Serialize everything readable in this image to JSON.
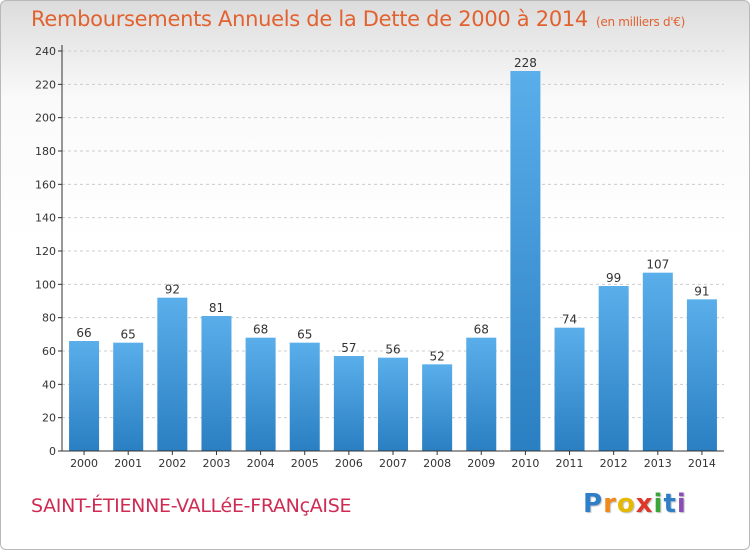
{
  "header": {
    "title": "Remboursements Annuels de la Dette de 2000 à 2014",
    "unit": "(en milliers d'€)"
  },
  "footer": {
    "commune": "SAINT-ÉTIENNE-VALLéE-FRANçAISE",
    "logo_letters": [
      "P",
      "r",
      "o",
      "x",
      "i",
      "t",
      "i"
    ],
    "logo_colors": [
      "#2f7fc8",
      "#f08a1c",
      "#e6b800",
      "#e0372b",
      "#3aa63a",
      "#2f7fc8",
      "#8a4fb5"
    ]
  },
  "colors": {
    "bar_top": "#5aaeea",
    "bar_bottom": "#2a7fc2",
    "grid": "#cccccc",
    "axis": "#333333"
  },
  "chart_data": {
    "type": "bar",
    "title": "Remboursements Annuels de la Dette de 2000 à 2014",
    "subtitle": "(en milliers d'€)",
    "xlabel": "",
    "ylabel": "",
    "categories": [
      "2000",
      "2001",
      "2002",
      "2003",
      "2004",
      "2005",
      "2006",
      "2007",
      "2008",
      "2009",
      "2010",
      "2011",
      "2012",
      "2013",
      "2014"
    ],
    "values": [
      66,
      65,
      92,
      81,
      68,
      65,
      57,
      56,
      52,
      68,
      228,
      74,
      99,
      107,
      91
    ],
    "ylim": [
      0,
      240
    ],
    "yticks": [
      0,
      20,
      40,
      60,
      80,
      100,
      120,
      140,
      160,
      180,
      200,
      220,
      240
    ],
    "grid": true,
    "data_labels": true
  }
}
